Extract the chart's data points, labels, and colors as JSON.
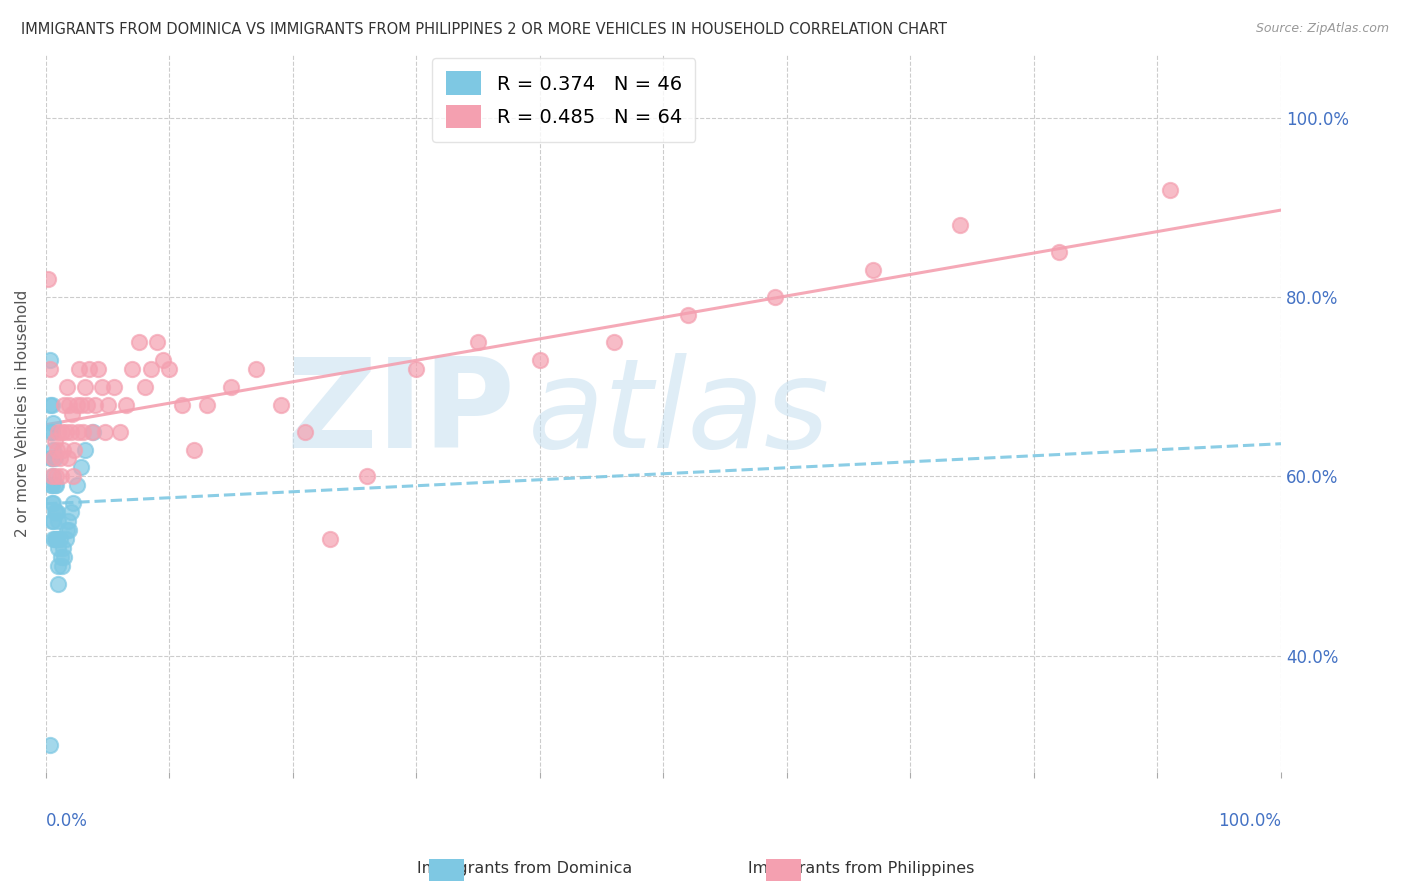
{
  "title": "IMMIGRANTS FROM DOMINICA VS IMMIGRANTS FROM PHILIPPINES 2 OR MORE VEHICLES IN HOUSEHOLD CORRELATION CHART",
  "source": "Source: ZipAtlas.com",
  "ylabel": "2 or more Vehicles in Household",
  "y_ticks_labels": [
    "40.0%",
    "60.0%",
    "80.0%",
    "100.0%"
  ],
  "y_ticks_vals": [
    0.4,
    0.6,
    0.8,
    1.0
  ],
  "x_lim": [
    0.0,
    1.0
  ],
  "y_lim": [
    0.27,
    1.07
  ],
  "legend_r_dominica": "R = 0.374",
  "legend_n_dominica": "N = 46",
  "legend_r_philippines": "R = 0.485",
  "legend_n_philippines": "N = 64",
  "color_dominica": "#7EC8E3",
  "color_philippines": "#F4A0B0",
  "dominica_x": [
    0.003,
    0.003,
    0.004,
    0.004,
    0.004,
    0.005,
    0.005,
    0.005,
    0.005,
    0.005,
    0.005,
    0.006,
    0.006,
    0.006,
    0.006,
    0.006,
    0.006,
    0.007,
    0.007,
    0.007,
    0.007,
    0.008,
    0.008,
    0.008,
    0.009,
    0.009,
    0.01,
    0.01,
    0.01,
    0.01,
    0.011,
    0.012,
    0.013,
    0.014,
    0.015,
    0.016,
    0.017,
    0.018,
    0.019,
    0.02,
    0.022,
    0.025,
    0.028,
    0.032,
    0.038,
    0.003
  ],
  "dominica_y": [
    0.73,
    0.68,
    0.65,
    0.62,
    0.59,
    0.68,
    0.65,
    0.62,
    0.59,
    0.57,
    0.55,
    0.66,
    0.63,
    0.6,
    0.57,
    0.55,
    0.53,
    0.62,
    0.59,
    0.56,
    0.53,
    0.59,
    0.56,
    0.53,
    0.56,
    0.53,
    0.55,
    0.52,
    0.5,
    0.48,
    0.53,
    0.51,
    0.5,
    0.52,
    0.51,
    0.53,
    0.54,
    0.55,
    0.54,
    0.56,
    0.57,
    0.59,
    0.61,
    0.63,
    0.65,
    0.3
  ],
  "philippines_x": [
    0.002,
    0.003,
    0.005,
    0.006,
    0.007,
    0.008,
    0.009,
    0.01,
    0.011,
    0.012,
    0.013,
    0.014,
    0.015,
    0.016,
    0.017,
    0.018,
    0.019,
    0.02,
    0.021,
    0.022,
    0.023,
    0.025,
    0.026,
    0.027,
    0.028,
    0.03,
    0.032,
    0.033,
    0.035,
    0.037,
    0.04,
    0.042,
    0.045,
    0.048,
    0.05,
    0.055,
    0.06,
    0.065,
    0.07,
    0.075,
    0.08,
    0.085,
    0.09,
    0.095,
    0.1,
    0.11,
    0.12,
    0.13,
    0.15,
    0.17,
    0.19,
    0.21,
    0.23,
    0.26,
    0.3,
    0.35,
    0.4,
    0.46,
    0.52,
    0.59,
    0.67,
    0.74,
    0.82,
    0.91
  ],
  "philippines_y": [
    0.82,
    0.72,
    0.6,
    0.62,
    0.64,
    0.6,
    0.63,
    0.65,
    0.62,
    0.6,
    0.65,
    0.63,
    0.68,
    0.65,
    0.7,
    0.62,
    0.68,
    0.65,
    0.67,
    0.6,
    0.63,
    0.68,
    0.65,
    0.72,
    0.68,
    0.65,
    0.7,
    0.68,
    0.72,
    0.65,
    0.68,
    0.72,
    0.7,
    0.65,
    0.68,
    0.7,
    0.65,
    0.68,
    0.72,
    0.75,
    0.7,
    0.72,
    0.75,
    0.73,
    0.72,
    0.68,
    0.63,
    0.68,
    0.7,
    0.72,
    0.68,
    0.65,
    0.53,
    0.6,
    0.72,
    0.75,
    0.73,
    0.75,
    0.78,
    0.8,
    0.83,
    0.88,
    0.85,
    0.92
  ]
}
